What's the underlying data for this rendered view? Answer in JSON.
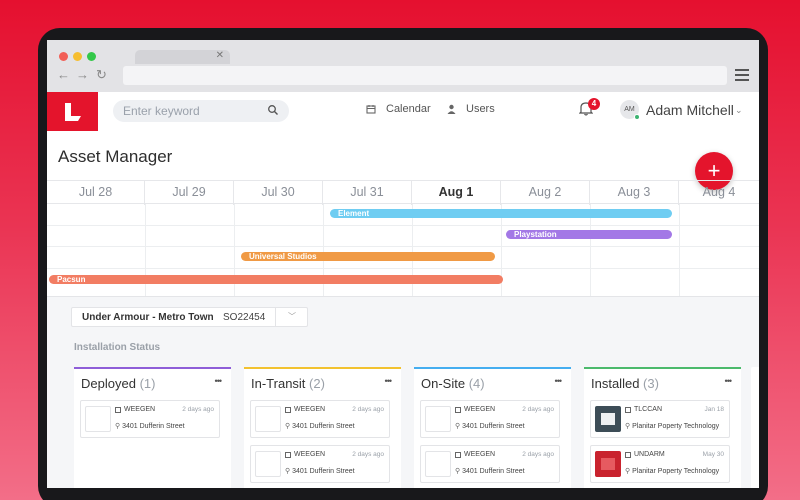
{
  "header": {
    "search_placeholder": "Enter keyword",
    "nav": [
      {
        "label": "Calendar",
        "icon": "calendar-icon"
      },
      {
        "label": "Users",
        "icon": "user-icon"
      }
    ],
    "notifications_count": "4",
    "user": {
      "initials": "AM",
      "name": "Adam Mitchell"
    }
  },
  "page": {
    "title": "Asset Manager",
    "fab_label": "+"
  },
  "timeline": {
    "dates": [
      {
        "label": "Jul 28",
        "bold": false
      },
      {
        "label": "Jul 29",
        "bold": false
      },
      {
        "label": "Jul 30",
        "bold": false
      },
      {
        "label": "Jul 31",
        "bold": false
      },
      {
        "label": "Aug 1",
        "bold": true
      },
      {
        "label": "Aug 2",
        "bold": false
      },
      {
        "label": "Aug 3",
        "bold": false
      },
      {
        "label": "Aug 4",
        "bold": false
      }
    ],
    "bars": [
      {
        "label": "Element",
        "color": "#6fcdf2"
      },
      {
        "label": "Playstation",
        "color": "#a378e6"
      },
      {
        "label": "Universal Studios",
        "color": "#f09a45"
      },
      {
        "label": "Pacsun",
        "color": "#f27d63"
      }
    ]
  },
  "project": {
    "name": "Under Armour - Metro Town",
    "code": "SO22454"
  },
  "section_label": "Installation Status",
  "columns": [
    {
      "title": "Deployed",
      "count": "(1)",
      "color": "#8e5ed8",
      "cards": [
        {
          "name": "WEEGEN",
          "time": "2 days ago",
          "address": "3401 Dufferin Street",
          "thumb": "blank"
        }
      ]
    },
    {
      "title": "In-Transit",
      "count": "(2)",
      "color": "#f2c230",
      "cards": [
        {
          "name": "WEEGEN",
          "time": "2 days ago",
          "address": "3401 Dufferin Street",
          "thumb": "blank"
        },
        {
          "name": "WEEGEN",
          "time": "2 days ago",
          "address": "3401 Dufferin Street",
          "thumb": "blank"
        }
      ]
    },
    {
      "title": "On-Site",
      "count": "(4)",
      "color": "#45aef0",
      "cards": [
        {
          "name": "WEEGEN",
          "time": "2 days ago",
          "address": "3401 Dufferin Street",
          "thumb": "blank"
        },
        {
          "name": "WEEGEN",
          "time": "2 days ago",
          "address": "3401 Dufferin Street",
          "thumb": "blank"
        }
      ]
    },
    {
      "title": "Installed",
      "count": "(3)",
      "color": "#4cba6c",
      "cards": [
        {
          "name": "TLCCAN",
          "time": "Jan 18",
          "address": "Planitar Poperty Technology",
          "thumb": "dark"
        },
        {
          "name": "UNDARM",
          "time": "May 30",
          "address": "Planitar Poperty Technology",
          "thumb": "red"
        }
      ]
    }
  ]
}
